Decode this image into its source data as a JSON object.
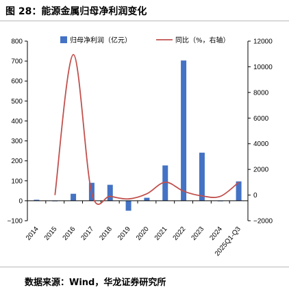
{
  "figure": {
    "title": "图 28：能源金属归母净利润变化",
    "source": "数据来源：Wind，华龙证券研究所"
  },
  "colors": {
    "bar": "#4472c4",
    "line": "#c0504d",
    "axis": "#000000"
  },
  "chart_data": {
    "type": "bar",
    "title": "",
    "categories": [
      "2014",
      "2015",
      "2016",
      "2017",
      "2018",
      "2019",
      "2020",
      "2021",
      "2022",
      "2023",
      "2024",
      "2025Q1-Q3"
    ],
    "series": [
      {
        "name": "归母净利润（亿元）",
        "type": "bar",
        "axis": "left",
        "values": [
          5,
          0,
          35,
          90,
          80,
          -50,
          15,
          177,
          703,
          241,
          -2,
          97
        ]
      },
      {
        "name": "同比（%，右轴）",
        "type": "line",
        "axis": "right",
        "smooth": true,
        "values": [
          null,
          0,
          10950,
          150,
          -100,
          -300,
          100,
          1000,
          300,
          -70,
          -100,
          1000
        ]
      }
    ],
    "y_left": {
      "ticks": [
        -100,
        0,
        100,
        200,
        300,
        400,
        500,
        600,
        700,
        800
      ],
      "range": [
        -100,
        800
      ]
    },
    "y_right": {
      "ticks": [
        -2000,
        0,
        2000,
        4000,
        6000,
        8000,
        10000,
        12000
      ],
      "range": [
        -2000,
        12000
      ]
    },
    "legend": "top",
    "grid": false
  }
}
